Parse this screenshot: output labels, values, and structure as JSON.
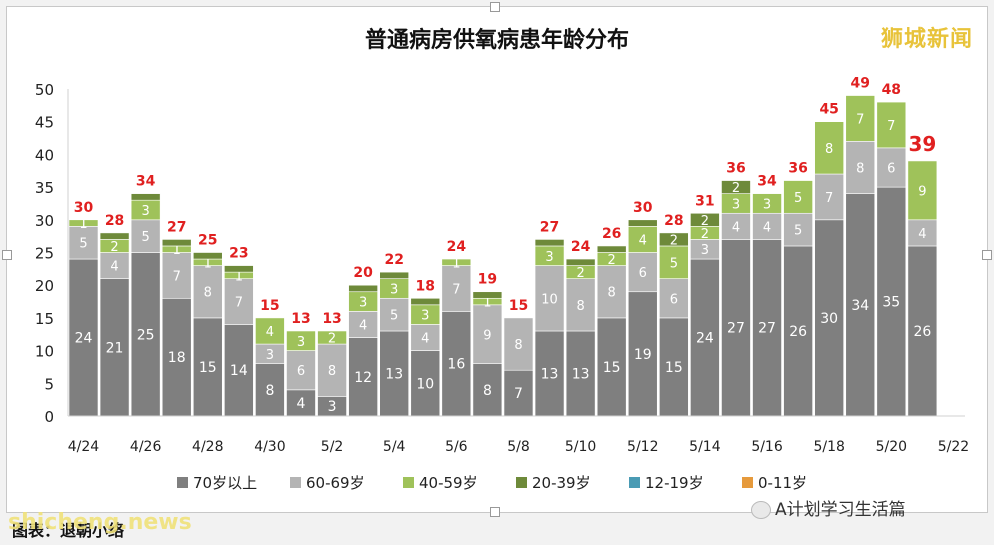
{
  "brand": "狮城新闻",
  "wechat_source": "A计划学习生活篇",
  "caption": "图表：退朝小络",
  "watermark": "shicheng.news",
  "colors": {
    "70岁以上": "#7f7f7f",
    "60-69岁": "#b4b4b4",
    "40-59岁": "#9fc25a",
    "20-39岁": "#6e8a3a",
    "12-19岁": "#4a9bb4",
    "0-11岁": "#e69a3c",
    "total_label": "#e02020"
  },
  "chart_data": {
    "type": "bar",
    "stacked": true,
    "title": "普通病房供氧病患年龄分布",
    "ylim": [
      0,
      50
    ],
    "yticks": [
      0,
      5,
      10,
      15,
      20,
      25,
      30,
      35,
      40,
      45,
      50
    ],
    "categories": [
      "4/24",
      "4/25",
      "4/26",
      "4/27",
      "4/28",
      "4/29",
      "4/30",
      "5/1",
      "5/2",
      "5/3",
      "5/4",
      "5/5",
      "5/6",
      "5/7",
      "5/8",
      "5/9",
      "5/10",
      "5/11",
      "5/12",
      "5/13",
      "5/14",
      "5/15",
      "5/16",
      "5/17",
      "5/18",
      "5/19",
      "5/20",
      "5/21"
    ],
    "xtick_labels": [
      "4/24",
      "4/26",
      "4/28",
      "4/30",
      "5/2",
      "5/4",
      "5/6",
      "5/8",
      "5/10",
      "5/12",
      "5/14",
      "5/16",
      "5/18",
      "5/20",
      "5/22"
    ],
    "series": [
      {
        "name": "70岁以上",
        "values": [
          24,
          21,
          25,
          18,
          15,
          14,
          8,
          4,
          3,
          12,
          13,
          10,
          16,
          8,
          7,
          13,
          13,
          15,
          19,
          15,
          24,
          27,
          27,
          26,
          30,
          34,
          35,
          26
        ]
      },
      {
        "name": "60-69岁",
        "values": [
          5,
          4,
          5,
          7,
          8,
          7,
          3,
          6,
          8,
          4,
          5,
          4,
          7,
          9,
          8,
          10,
          8,
          8,
          6,
          6,
          3,
          4,
          4,
          5,
          7,
          8,
          6,
          4
        ]
      },
      {
        "name": "40-59岁",
        "values": [
          1,
          2,
          3,
          1,
          1,
          1,
          4,
          3,
          2,
          3,
          3,
          3,
          1,
          1,
          0,
          3,
          2,
          2,
          4,
          5,
          2,
          3,
          3,
          5,
          8,
          7,
          7,
          9
        ]
      },
      {
        "name": "20-39岁",
        "values": [
          0,
          1,
          1,
          1,
          1,
          1,
          0,
          0,
          0,
          1,
          1,
          1,
          0,
          1,
          0,
          1,
          1,
          1,
          1,
          2,
          2,
          2,
          0,
          0,
          0,
          0,
          0,
          0
        ]
      },
      {
        "name": "12-19岁",
        "values": [
          0,
          0,
          0,
          0,
          0,
          0,
          0,
          0,
          0,
          0,
          0,
          0,
          0,
          0,
          0,
          0,
          0,
          0,
          0,
          0,
          0,
          0,
          0,
          0,
          0,
          0,
          0,
          0
        ]
      },
      {
        "name": "0-11岁",
        "values": [
          0,
          0,
          0,
          0,
          0,
          0,
          0,
          0,
          0,
          0,
          0,
          0,
          0,
          0,
          0,
          0,
          0,
          0,
          0,
          0,
          0,
          0,
          0,
          0,
          0,
          0,
          0,
          0
        ]
      }
    ],
    "totals": [
      30,
      28,
      34,
      27,
      25,
      23,
      15,
      13,
      13,
      20,
      22,
      18,
      24,
      19,
      15,
      27,
      24,
      26,
      30,
      28,
      31,
      36,
      34,
      36,
      45,
      49,
      48,
      39
    ],
    "segment_labels": [
      [
        "24",
        "5",
        "1",
        ""
      ],
      [
        "21",
        "4",
        "2",
        ""
      ],
      [
        "25",
        "5",
        "3",
        ""
      ],
      [
        "18",
        "7",
        "1",
        ""
      ],
      [
        "15",
        "8",
        "1",
        ""
      ],
      [
        "14",
        "7",
        "1",
        ""
      ],
      [
        "8",
        "3",
        "4",
        ""
      ],
      [
        "4",
        "6",
        "3",
        ""
      ],
      [
        "3",
        "8",
        "2",
        ""
      ],
      [
        "12",
        "4",
        "3",
        ""
      ],
      [
        "13",
        "5",
        "3",
        ""
      ],
      [
        "10",
        "4",
        "3",
        ""
      ],
      [
        "16",
        "7",
        "1",
        ""
      ],
      [
        "8",
        "9",
        "1",
        ""
      ],
      [
        "7",
        "8",
        "",
        ""
      ],
      [
        "13",
        "10",
        "3",
        ""
      ],
      [
        "13",
        "8",
        "2",
        ""
      ],
      [
        "15",
        "8",
        "2",
        ""
      ],
      [
        "19",
        "6",
        "4",
        ""
      ],
      [
        "15",
        "6",
        "5",
        "2"
      ],
      [
        "24",
        "3",
        "2",
        "2"
      ],
      [
        "27",
        "4",
        "3",
        "2"
      ],
      [
        "27",
        "4",
        "3",
        ""
      ],
      [
        "26",
        "5",
        "5",
        ""
      ],
      [
        "30",
        "7",
        "8",
        ""
      ],
      [
        "34",
        "8",
        "7",
        ""
      ],
      [
        "35",
        "6",
        "7",
        ""
      ],
      [
        "26",
        "4",
        "9",
        ""
      ]
    ],
    "legend_position": "bottom",
    "grid": false
  }
}
